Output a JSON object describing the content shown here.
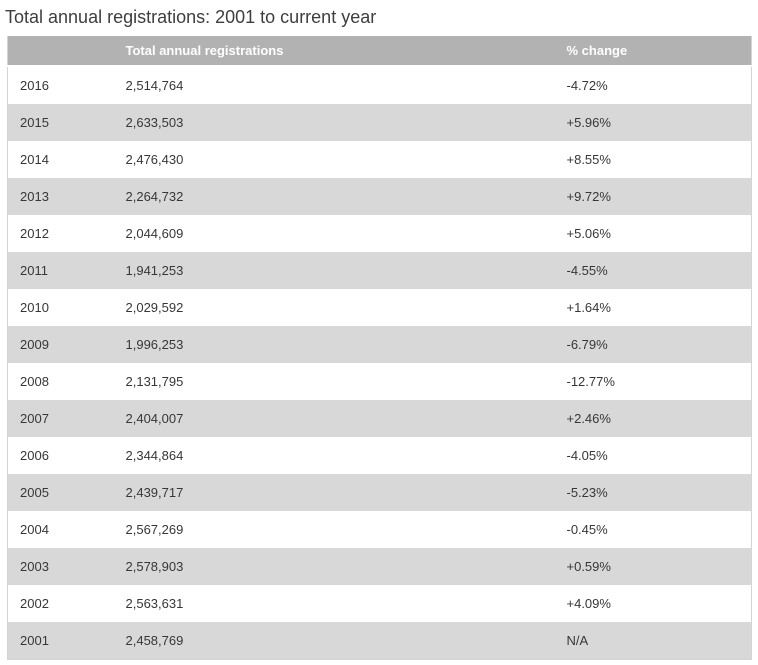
{
  "title": "Total annual registrations: 2001 to current year",
  "chart_data": {
    "type": "table",
    "title": "Total annual registrations: 2001 to current year",
    "column_headers": [
      "",
      "Total annual registrations",
      "% change"
    ],
    "rows": [
      {
        "year": "2016",
        "total": "2,514,764",
        "change": "-4.72%"
      },
      {
        "year": "2015",
        "total": "2,633,503",
        "change": "+5.96%"
      },
      {
        "year": "2014",
        "total": "2,476,430",
        "change": "+8.55%"
      },
      {
        "year": "2013",
        "total": "2,264,732",
        "change": "+9.72%"
      },
      {
        "year": "2012",
        "total": "2,044,609",
        "change": "+5.06%"
      },
      {
        "year": "2011",
        "total": "1,941,253",
        "change": "-4.55%"
      },
      {
        "year": "2010",
        "total": "2,029,592",
        "change": "+1.64%"
      },
      {
        "year": "2009",
        "total": "1,996,253",
        "change": "-6.79%"
      },
      {
        "year": "2008",
        "total": "2,131,795",
        "change": "-12.77%"
      },
      {
        "year": "2007",
        "total": "2,404,007",
        "change": "+2.46%"
      },
      {
        "year": "2006",
        "total": "2,344,864",
        "change": "-4.05%"
      },
      {
        "year": "2005",
        "total": "2,439,717",
        "change": "-5.23%"
      },
      {
        "year": "2004",
        "total": "2,567,269",
        "change": "-0.45%"
      },
      {
        "year": "2003",
        "total": "2,578,903",
        "change": "+0.59%"
      },
      {
        "year": "2002",
        "total": "2,563,631",
        "change": "+4.09%"
      },
      {
        "year": "2001",
        "total": "2,458,769",
        "change": "N/A"
      }
    ]
  },
  "colors": {
    "header_bg": "#b2b2b2",
    "header_text": "#ffffff",
    "alt_row_bg": "#d8d8d8",
    "text": "#373737",
    "title": "#3e3e3e",
    "border": "#d4d4d4"
  }
}
